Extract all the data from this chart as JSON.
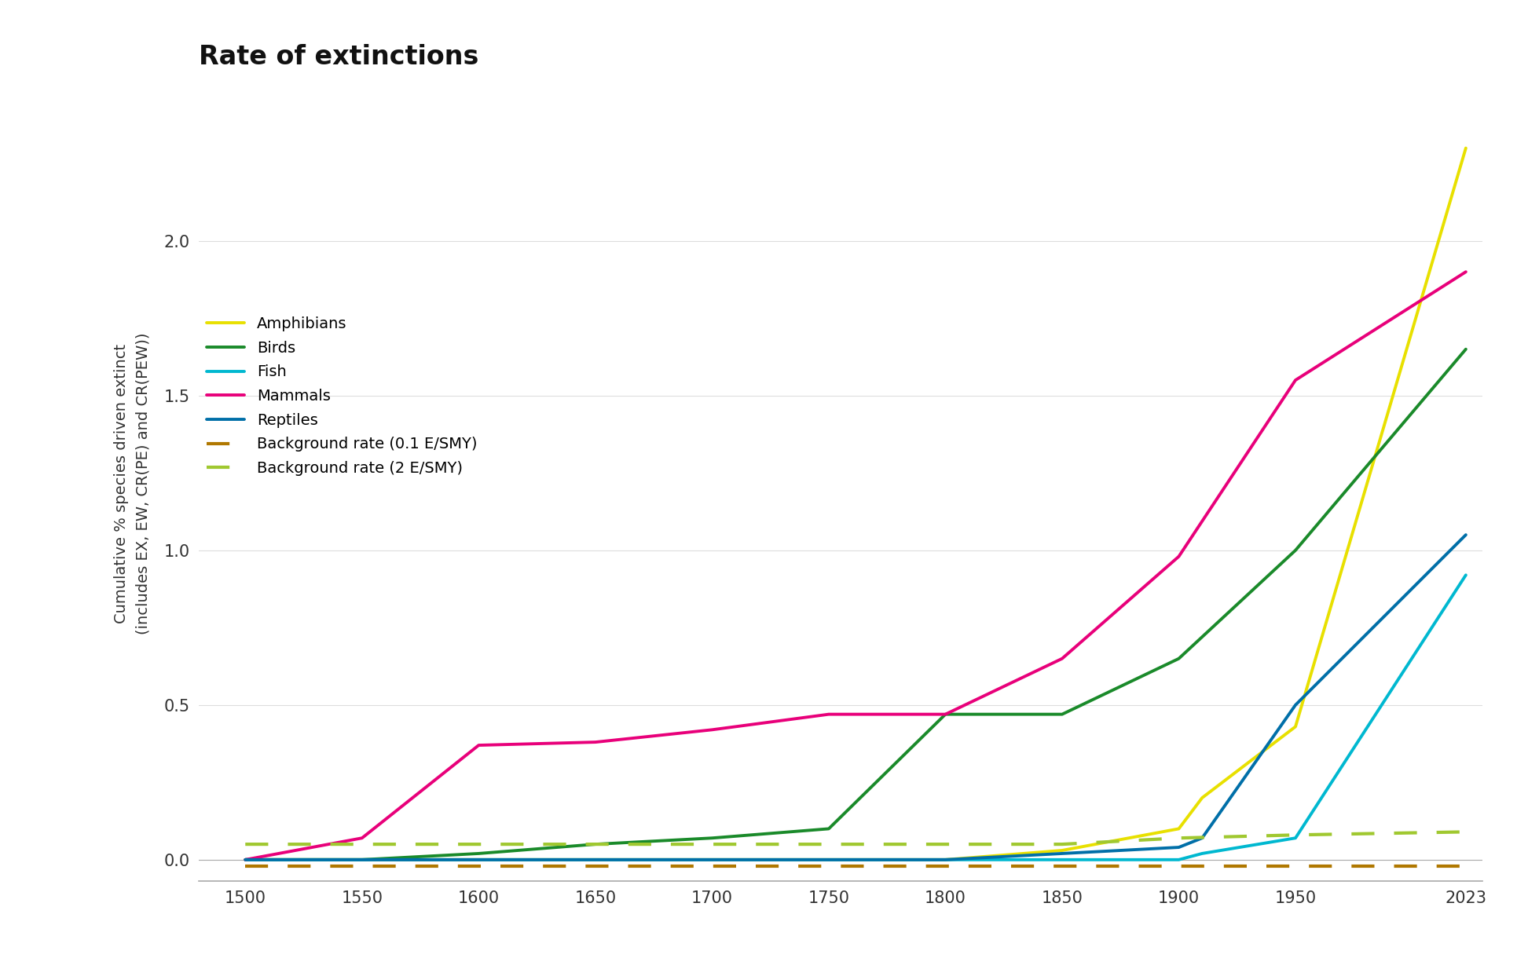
{
  "title": "Rate of extinctions",
  "ylabel_line1": "Cumulative % species driven extinct",
  "ylabel_line2": "(includes EX, EW, CR(PE) and CR(PEW))",
  "ylim": [
    -0.07,
    2.5
  ],
  "yticks": [
    0.0,
    0.5,
    1.0,
    1.5,
    2.0
  ],
  "xlim": [
    1480,
    2030
  ],
  "xticks": [
    1500,
    1550,
    1600,
    1650,
    1700,
    1750,
    1800,
    1850,
    1900,
    1950,
    2023
  ],
  "background_color": "#ffffff",
  "series": {
    "Amphibians": {
      "x": [
        1500,
        1550,
        1600,
        1650,
        1700,
        1750,
        1800,
        1850,
        1900,
        1910,
        1950,
        2023
      ],
      "y": [
        0.0,
        0.0,
        0.0,
        0.0,
        0.0,
        0.0,
        0.0,
        0.03,
        0.1,
        0.2,
        0.43,
        2.3
      ],
      "color": "#e8e000",
      "linewidth": 2.8,
      "dashed": false
    },
    "Birds": {
      "x": [
        1500,
        1550,
        1600,
        1650,
        1700,
        1750,
        1800,
        1850,
        1900,
        1950,
        2023
      ],
      "y": [
        0.0,
        0.0,
        0.02,
        0.05,
        0.07,
        0.1,
        0.47,
        0.47,
        0.65,
        1.0,
        1.65
      ],
      "color": "#1a8a2a",
      "linewidth": 2.8,
      "dashed": false
    },
    "Fish": {
      "x": [
        1500,
        1800,
        1850,
        1900,
        1910,
        1950,
        2023
      ],
      "y": [
        0.0,
        0.0,
        0.0,
        0.0,
        0.02,
        0.07,
        0.92
      ],
      "color": "#00b8d0",
      "linewidth": 2.8,
      "dashed": false
    },
    "Mammals": {
      "x": [
        1500,
        1550,
        1600,
        1650,
        1700,
        1750,
        1800,
        1850,
        1900,
        1950,
        2023
      ],
      "y": [
        0.0,
        0.07,
        0.37,
        0.38,
        0.42,
        0.47,
        0.47,
        0.65,
        0.98,
        1.55,
        1.9
      ],
      "color": "#e8007a",
      "linewidth": 2.8,
      "dashed": false
    },
    "Reptiles": {
      "x": [
        1500,
        1800,
        1850,
        1900,
        1910,
        1950,
        2023
      ],
      "y": [
        0.0,
        0.0,
        0.02,
        0.04,
        0.07,
        0.5,
        1.05
      ],
      "color": "#006fa8",
      "linewidth": 2.8,
      "dashed": false
    },
    "Background rate (0.1 E/SMY)": {
      "x": [
        1500,
        1550,
        1600,
        1650,
        1700,
        1750,
        1800,
        1850,
        1900,
        1950,
        2023
      ],
      "y": [
        -0.02,
        -0.02,
        -0.02,
        -0.02,
        -0.02,
        -0.02,
        -0.02,
        -0.02,
        -0.02,
        -0.02,
        -0.02
      ],
      "color": "#b07800",
      "linewidth": 3.0,
      "dashed": true
    },
    "Background rate (2 E/SMY)": {
      "x": [
        1500,
        1550,
        1600,
        1650,
        1700,
        1750,
        1800,
        1850,
        1900,
        1950,
        2023
      ],
      "y": [
        0.05,
        0.05,
        0.05,
        0.05,
        0.05,
        0.05,
        0.05,
        0.05,
        0.07,
        0.08,
        0.09
      ],
      "color": "#a0c830",
      "linewidth": 3.0,
      "dashed": true
    }
  },
  "legend_order": [
    "Amphibians",
    "Birds",
    "Fish",
    "Mammals",
    "Reptiles",
    "Background rate (0.1 E/SMY)",
    "Background rate (2 E/SMY)"
  ],
  "title_fontsize": 24,
  "label_fontsize": 14,
  "tick_fontsize": 15,
  "legend_fontsize": 14
}
